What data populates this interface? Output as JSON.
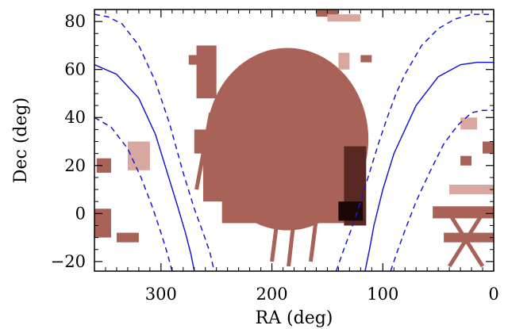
{
  "chart_data": {
    "type": "scatter",
    "title": "",
    "xlabel": "RA (deg)",
    "ylabel": "Dec (deg)",
    "xlim": [
      360,
      0
    ],
    "ylim": [
      -24,
      85
    ],
    "x_reversed": true,
    "grid": false,
    "x_ticks": [
      300,
      200,
      100,
      0
    ],
    "x_tick_labels": [
      "300",
      "200",
      "100",
      "0"
    ],
    "y_ticks": [
      -20,
      0,
      20,
      40,
      60,
      80
    ],
    "y_tick_labels": [
      "−20",
      "0",
      "20",
      "40",
      "60",
      "80"
    ],
    "colors": {
      "coverage_main": "#a86258",
      "coverage_light": "#d8a79f",
      "coverage_dark": "#5a2822",
      "coverage_black": "#1a0606",
      "galactic_plane": "#1a1acc",
      "axis": "#000000"
    },
    "series": [
      {
        "kind": "line",
        "style": "solid",
        "segments": [
          {
            "ra": [
              360,
              340,
              320,
              305,
              295,
              285,
              278,
              273,
              270
            ],
            "dec": [
              62,
              58,
              48,
              33,
              18,
              3,
              -8,
              -17,
              -24
            ]
          },
          {
            "ra": [
              116,
              112,
              108,
              100,
              90,
              70,
              50,
              30,
              15,
              0
            ],
            "dec": [
              -24,
              -15,
              -5,
              10,
              25,
              45,
              57,
              62,
              63,
              63
            ]
          }
        ]
      },
      {
        "kind": "line",
        "style": "dashed",
        "segments": [
          {
            "ra": [
              360,
              348,
              335,
              320,
              305,
              292,
              280,
              270,
              262,
              256,
              252
            ],
            "dec": [
              83,
              82,
              79,
              70,
              55,
              37,
              17,
              2,
              -8,
              -16,
              -24
            ]
          },
          {
            "ra": [
              360,
              345,
              330,
              318,
              308,
              300,
              294,
              290
            ],
            "dec": [
              40,
              36,
              27,
              15,
              3,
              -8,
              -17,
              -24
            ]
          },
          {
            "ra": [
              142,
              136,
              128,
              120,
              112,
              104,
              96,
              88,
              80,
              65,
              50,
              35,
              20,
              10,
              0
            ],
            "dec": [
              -24,
              -16,
              -6,
              5,
              17,
              29,
              40,
              50,
              58,
              70,
              77,
              81,
              83,
              83,
              83
            ]
          },
          {
            "ra": [
              93,
              87,
              80,
              70,
              58,
              45,
              32,
              20,
              10,
              0
            ],
            "dec": [
              -24,
              -16,
              -7,
              5,
              17,
              29,
              37,
              42,
              43,
              43
            ]
          }
        ]
      },
      {
        "kind": "coverage",
        "shape": "ellipse",
        "center": [
          186,
          31
        ],
        "radius": [
          73,
          38
        ],
        "color": "main"
      },
      {
        "kind": "coverage",
        "shape": "rect",
        "regions": [
          {
            "ra": [
              245,
              125
            ],
            "dec": [
              -4,
              15
            ],
            "color": "main"
          },
          {
            "ra": [
              262,
              240
            ],
            "dec": [
              5,
              30
            ],
            "color": "main"
          },
          {
            "ra": [
              270,
              255
            ],
            "dec": [
              25,
              35
            ],
            "color": "main"
          },
          {
            "ra": [
              268,
              250
            ],
            "dec": [
              48,
              70
            ],
            "color": "main"
          },
          {
            "ra": [
              275,
              262
            ],
            "dec": [
              62,
              66
            ],
            "color": "main"
          },
          {
            "ra": [
              160,
              140
            ],
            "dec": [
              82,
              85
            ],
            "color": "main"
          },
          {
            "ra": [
              150,
              120
            ],
            "dec": [
              80,
              83
            ],
            "color": "light"
          },
          {
            "ra": [
              120,
              110
            ],
            "dec": [
              63,
              66
            ],
            "color": "main"
          },
          {
            "ra": [
              140,
              130
            ],
            "dec": [
              60,
              67
            ],
            "color": "light"
          },
          {
            "ra": [
              135,
              115
            ],
            "dec": [
              -5,
              28
            ],
            "color": "dark"
          },
          {
            "ra": [
              140,
              118
            ],
            "dec": [
              -3,
              5
            ],
            "color": "black"
          },
          {
            "ra": [
              360,
              345
            ],
            "dec": [
              -10,
              2
            ],
            "color": "main"
          },
          {
            "ra": [
              358,
              345
            ],
            "dec": [
              17,
              23
            ],
            "color": "main"
          },
          {
            "ra": [
              340,
              320
            ],
            "dec": [
              -12,
              -8
            ],
            "color": "main"
          },
          {
            "ra": [
              330,
              310
            ],
            "dec": [
              18,
              30
            ],
            "color": "light"
          },
          {
            "ra": [
              55,
              0
            ],
            "dec": [
              -2,
              3
            ],
            "color": "main"
          },
          {
            "ra": [
              45,
              0
            ],
            "dec": [
              -12,
              -8
            ],
            "color": "main"
          },
          {
            "ra": [
              40,
              0
            ],
            "dec": [
              8,
              12
            ],
            "color": "light"
          },
          {
            "ra": [
              10,
              0
            ],
            "dec": [
              25,
              30
            ],
            "color": "main"
          },
          {
            "ra": [
              30,
              15
            ],
            "dec": [
              35,
              40
            ],
            "color": "light"
          },
          {
            "ra": [
              30,
              20
            ],
            "dec": [
              20,
              24
            ],
            "color": "main"
          }
        ]
      },
      {
        "kind": "coverage",
        "shape": "stripe",
        "stripes": [
          {
            "ra": [
              268,
              255
            ],
            "dec": [
              10,
              42
            ]
          },
          {
            "ra": [
              185,
              180
            ],
            "dec": [
              -22,
              -2
            ]
          },
          {
            "ra": [
              200,
              195
            ],
            "dec": [
              -20,
              -2
            ]
          },
          {
            "ra": [
              165,
              160
            ],
            "dec": [
              -20,
              -2
            ]
          },
          {
            "ra": [
              40,
              10
            ],
            "dec": [
              -22,
              0
            ]
          },
          {
            "ra": [
              10,
              40
            ],
            "dec": [
              -22,
              0
            ]
          }
        ]
      }
    ]
  }
}
